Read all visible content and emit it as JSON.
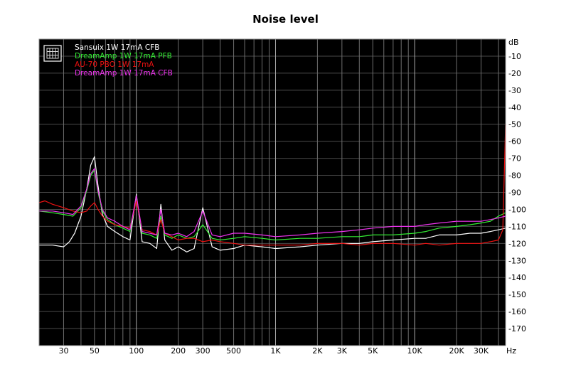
{
  "chart_data": {
    "type": "line",
    "title": "Noise level",
    "xlabel": "Hz",
    "ylabel": "dB",
    "x_scale": "log",
    "xlim": [
      20,
      45000
    ],
    "ylim": [
      -180,
      0
    ],
    "grid": true,
    "legend_position": "top-left",
    "background_color": "#000000",
    "x_ticks": [
      {
        "value": 30,
        "label": "30"
      },
      {
        "value": 50,
        "label": "50"
      },
      {
        "value": 100,
        "label": "100"
      },
      {
        "value": 200,
        "label": "200"
      },
      {
        "value": 300,
        "label": "300"
      },
      {
        "value": 500,
        "label": "500"
      },
      {
        "value": 1000,
        "label": "1K"
      },
      {
        "value": 2000,
        "label": "2K"
      },
      {
        "value": 3000,
        "label": "3K"
      },
      {
        "value": 5000,
        "label": "5K"
      },
      {
        "value": 10000,
        "label": "10K"
      },
      {
        "value": 20000,
        "label": "20K"
      },
      {
        "value": 30000,
        "label": "30K"
      }
    ],
    "y_ticks": [
      {
        "value": 0,
        "label": "dB"
      },
      {
        "value": -10,
        "label": "-10"
      },
      {
        "value": -20,
        "label": "-20"
      },
      {
        "value": -30,
        "label": "-30"
      },
      {
        "value": -40,
        "label": "-40"
      },
      {
        "value": -50,
        "label": "-50"
      },
      {
        "value": -60,
        "label": "-60"
      },
      {
        "value": -70,
        "label": "-70"
      },
      {
        "value": -80,
        "label": "-80"
      },
      {
        "value": -90,
        "label": "-90"
      },
      {
        "value": -100,
        "label": "-100"
      },
      {
        "value": -110,
        "label": "-110"
      },
      {
        "value": -120,
        "label": "-120"
      },
      {
        "value": -130,
        "label": "-130"
      },
      {
        "value": -140,
        "label": "-140"
      },
      {
        "value": -150,
        "label": "-150"
      },
      {
        "value": -160,
        "label": "-160"
      },
      {
        "value": -170,
        "label": "-170"
      }
    ],
    "series": [
      {
        "name": "Sansuix 1W 17mA CFB",
        "color": "#ffffff",
        "x": [
          20,
          25,
          30,
          33,
          36,
          40,
          44,
          47,
          50,
          53,
          57,
          62,
          70,
          80,
          90,
          100,
          110,
          125,
          140,
          150,
          160,
          180,
          200,
          230,
          260,
          300,
          350,
          400,
          500,
          600,
          800,
          1000,
          1500,
          2000,
          3000,
          4000,
          5000,
          7000,
          10000,
          12000,
          15000,
          20000,
          25000,
          30000,
          35000,
          40000,
          45000
        ],
        "y": [
          -121,
          -121,
          -122,
          -119,
          -114,
          -104,
          -88,
          -74,
          -69,
          -86,
          -103,
          -110,
          -113,
          -116,
          -118,
          -91,
          -119,
          -120,
          -123,
          -97,
          -118,
          -124,
          -122,
          -125,
          -123,
          -99,
          -122,
          -124,
          -123,
          -121,
          -122,
          -123,
          -122,
          -121,
          -120,
          -120,
          -119,
          -118,
          -117,
          -117,
          -115,
          -115,
          -114,
          -114,
          -113,
          -112,
          -111
        ]
      },
      {
        "name": "DreamAmp 1W 17mA PFB",
        "color": "#33ee33",
        "x": [
          20,
          25,
          30,
          35,
          40,
          44,
          47,
          50,
          53,
          57,
          62,
          70,
          80,
          90,
          100,
          110,
          125,
          140,
          150,
          160,
          180,
          200,
          230,
          260,
          300,
          350,
          400,
          500,
          600,
          800,
          1000,
          1500,
          2000,
          3000,
          4000,
          5000,
          7000,
          10000,
          12000,
          15000,
          20000,
          25000,
          30000,
          35000,
          40000,
          45000
        ],
        "y": [
          -101,
          -102,
          -103,
          -104,
          -99,
          -89,
          -80,
          -77,
          -90,
          -101,
          -106,
          -109,
          -111,
          -113,
          -93,
          -114,
          -115,
          -117,
          -104,
          -115,
          -117,
          -115,
          -117,
          -116,
          -109,
          -117,
          -118,
          -117,
          -116,
          -117,
          -118,
          -117,
          -117,
          -116,
          -116,
          -115,
          -115,
          -114,
          -113,
          -111,
          -110,
          -109,
          -108,
          -107,
          -104,
          -102
        ]
      },
      {
        "name": "AU-70 PBO 1W 17mA",
        "color": "#ee1111",
        "x": [
          20,
          22,
          25,
          30,
          35,
          40,
          44,
          47,
          50,
          53,
          57,
          62,
          70,
          80,
          90,
          100,
          110,
          125,
          140,
          150,
          160,
          180,
          200,
          230,
          260,
          300,
          350,
          400,
          500,
          600,
          800,
          1000,
          1500,
          2000,
          3000,
          4000,
          5000,
          7000,
          10000,
          12000,
          15000,
          20000,
          25000,
          30000,
          35000,
          40000,
          43000,
          45000
        ],
        "y": [
          -96,
          -95,
          -97,
          -99,
          -101,
          -102,
          -101,
          -98,
          -96,
          -100,
          -104,
          -107,
          -109,
          -110,
          -111,
          -95,
          -112,
          -113,
          -115,
          -106,
          -114,
          -116,
          -118,
          -117,
          -117,
          -119,
          -118,
          -119,
          -120,
          -121,
          -121,
          -121,
          -121,
          -120,
          -120,
          -121,
          -120,
          -120,
          -121,
          -120,
          -121,
          -120,
          -120,
          -120,
          -119,
          -118,
          -112,
          -50
        ]
      },
      {
        "name": "DreamAmp 1W 17mA CFB",
        "color": "#ee33ee",
        "x": [
          20,
          25,
          30,
          35,
          40,
          44,
          47,
          50,
          53,
          57,
          62,
          70,
          80,
          90,
          100,
          110,
          125,
          140,
          150,
          160,
          180,
          200,
          230,
          260,
          300,
          350,
          400,
          500,
          600,
          800,
          1000,
          1500,
          2000,
          3000,
          4000,
          5000,
          7000,
          10000,
          12000,
          15000,
          20000,
          25000,
          30000,
          35000,
          40000,
          45000
        ],
        "y": [
          -101,
          -101,
          -102,
          -103,
          -98,
          -88,
          -79,
          -76,
          -89,
          -100,
          -105,
          -107,
          -110,
          -112,
          -92,
          -113,
          -114,
          -115,
          -100,
          -114,
          -115,
          -114,
          -116,
          -113,
          -101,
          -115,
          -116,
          -114,
          -114,
          -115,
          -116,
          -115,
          -114,
          -113,
          -112,
          -111,
          -110,
          -110,
          -109,
          -108,
          -107,
          -107,
          -107,
          -106,
          -105,
          -104
        ]
      }
    ]
  }
}
